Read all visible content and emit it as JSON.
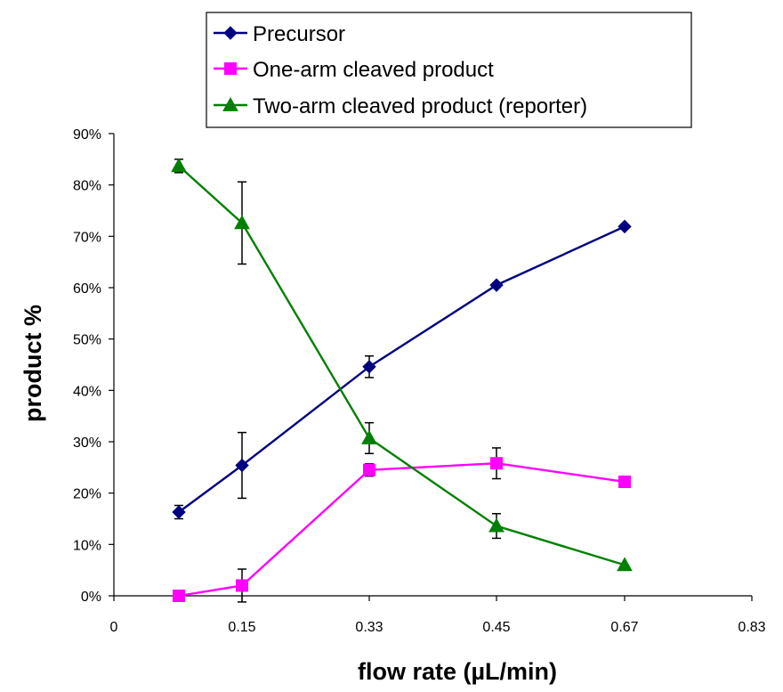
{
  "chart_data": {
    "type": "line",
    "xlabel": "flow rate (µL/min)",
    "ylabel": "product %",
    "x_axis": {
      "tick_labels": [
        "0",
        "0.15",
        "0.33",
        "0.45",
        "0.67",
        "0.83"
      ],
      "note": "categorical-style axis; data points sit at the printed ticks, first point left of 0.15"
    },
    "y_axis": {
      "ylim": [
        0,
        90
      ],
      "tick_labels": [
        "0%",
        "10%",
        "20%",
        "30%",
        "40%",
        "50%",
        "60%",
        "70%",
        "80%",
        "90%"
      ]
    },
    "x": [
      0.05,
      0.15,
      0.33,
      0.45,
      0.67
    ],
    "series": [
      {
        "name": "Precursor",
        "color": "#000080",
        "marker": "diamond",
        "values": [
          16.3,
          25.4,
          44.6,
          60.5,
          71.9
        ],
        "errors": [
          1.3,
          6.4,
          2.1,
          0.4,
          0.3
        ]
      },
      {
        "name": "One-arm cleaved product",
        "color": "#ff00ff",
        "marker": "square",
        "values": [
          0.0,
          2.0,
          24.5,
          25.8,
          22.2
        ],
        "errors": [
          0.0,
          3.2,
          1.2,
          3.0,
          0.0
        ]
      },
      {
        "name": "Two-arm cleaved product (reporter)",
        "color": "#008000",
        "marker": "triangle",
        "values": [
          83.7,
          72.6,
          30.7,
          13.6,
          6.0
        ],
        "errors": [
          1.3,
          8.0,
          3.0,
          2.4,
          0.0
        ]
      }
    ],
    "grid": false,
    "legend": "top"
  }
}
